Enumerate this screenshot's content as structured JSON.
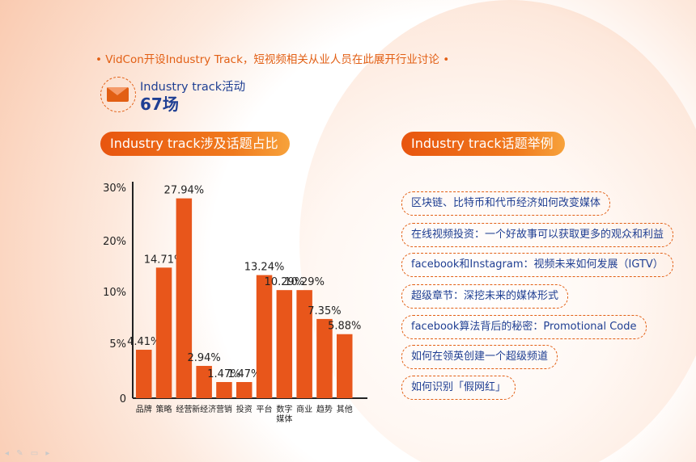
{
  "header": {
    "line": "• VidCon开设Industry Track，短视频相关从业人员在此展开行业讨论 •",
    "event_label": "Industry track活动",
    "event_count": "67场"
  },
  "left_section_title": "Industry track涉及话题占比",
  "right_section_title": "Industry track话题举例",
  "topics": [
    "区块链、比特币和代币经济如何改变媒体",
    "在线视频投资：一个好故事可以获取更多的观众和利益",
    "facebook和Instagram：视频未来如何发展（IGTV）",
    "超级章节：深挖未来的媒体形式",
    "facebook算法背后的秘密：Promotional Code",
    "如何在领英创建一个超级频道",
    "如何识别「假网红」"
  ],
  "colors": {
    "accent": "#e25f14",
    "bar": "#e8561b",
    "text_blue": "#1f3f93"
  },
  "chart_data": {
    "type": "bar",
    "categories": [
      "品牌",
      "策略",
      "经营",
      "新经济",
      "营销",
      "投资",
      "平台",
      "数字\n媒体",
      "商业",
      "趋势",
      "其他"
    ],
    "values": [
      4.41,
      14.71,
      27.94,
      2.94,
      1.47,
      1.47,
      13.24,
      10.29,
      10.29,
      7.35,
      5.88
    ],
    "value_labels": [
      "4.41%",
      "14.71%",
      "27.94%",
      "2.94%",
      "1.47%",
      "1.47%",
      "13.24%",
      "10.29%",
      "10.29%",
      "7.35%",
      "5.88%"
    ],
    "yticks": [
      {
        "value": 0,
        "label": "0"
      },
      {
        "value": 5,
        "label": "5%"
      },
      {
        "value": 10,
        "label": "10%"
      },
      {
        "value": 20,
        "label": "20%"
      },
      {
        "value": 30,
        "label": "30%"
      }
    ],
    "ylim": [
      0,
      30
    ],
    "grid": false,
    "title": "",
    "xlabel": "",
    "ylabel": ""
  }
}
